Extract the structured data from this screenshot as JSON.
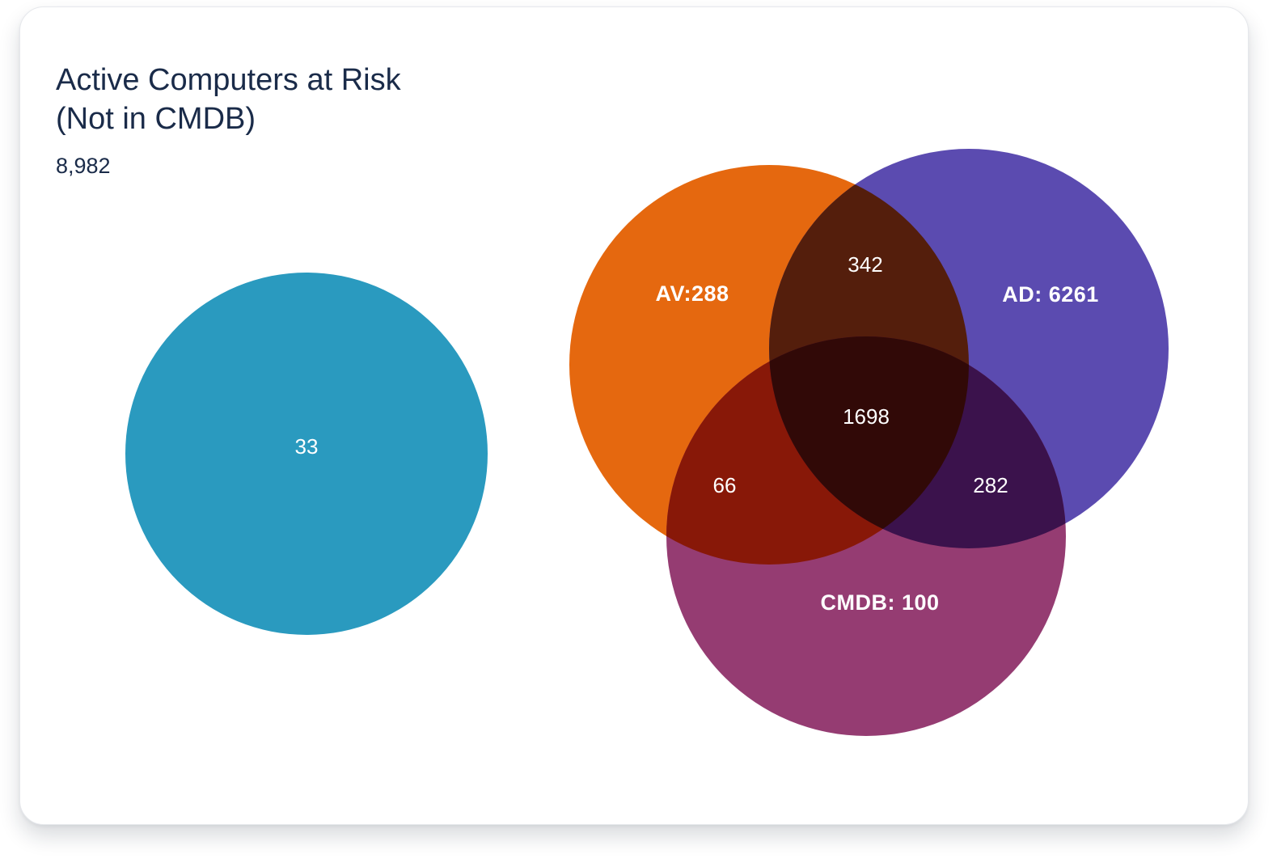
{
  "card": {
    "title": "Active Computers at Risk\n(Not in CMDB)",
    "total": "8,982"
  },
  "chart_data": {
    "type": "venn",
    "sets": [
      {
        "id": "isolated",
        "label": "",
        "color": "#2a9abf"
      },
      {
        "id": "av",
        "label": "AV:288",
        "color": "#e5680f"
      },
      {
        "id": "ad",
        "label": "AD: 6261",
        "color": "#5b4bb0"
      },
      {
        "id": "cmdb",
        "label": "CMDB: 100",
        "color": "#953c72"
      }
    ],
    "regions": [
      {
        "sets": [
          "isolated"
        ],
        "value": 33,
        "label": "33"
      },
      {
        "sets": [
          "av"
        ],
        "value": 288,
        "label": "AV:288"
      },
      {
        "sets": [
          "ad"
        ],
        "value": 6261,
        "label": "AD: 6261"
      },
      {
        "sets": [
          "cmdb"
        ],
        "value": 100,
        "label": "CMDB: 100"
      },
      {
        "sets": [
          "av",
          "ad"
        ],
        "value": 342,
        "label": "342"
      },
      {
        "sets": [
          "av",
          "cmdb"
        ],
        "value": 66,
        "label": "66"
      },
      {
        "sets": [
          "ad",
          "cmdb"
        ],
        "value": 282,
        "label": "282"
      },
      {
        "sets": [
          "av",
          "ad",
          "cmdb"
        ],
        "value": 1698,
        "label": "1698"
      }
    ],
    "intersection_colors": {
      "av-ad": "#541e0c",
      "av-cmdb": "#881808",
      "ad-cmdb": "#3b124c",
      "av-ad-cmdb": "#310907"
    }
  }
}
